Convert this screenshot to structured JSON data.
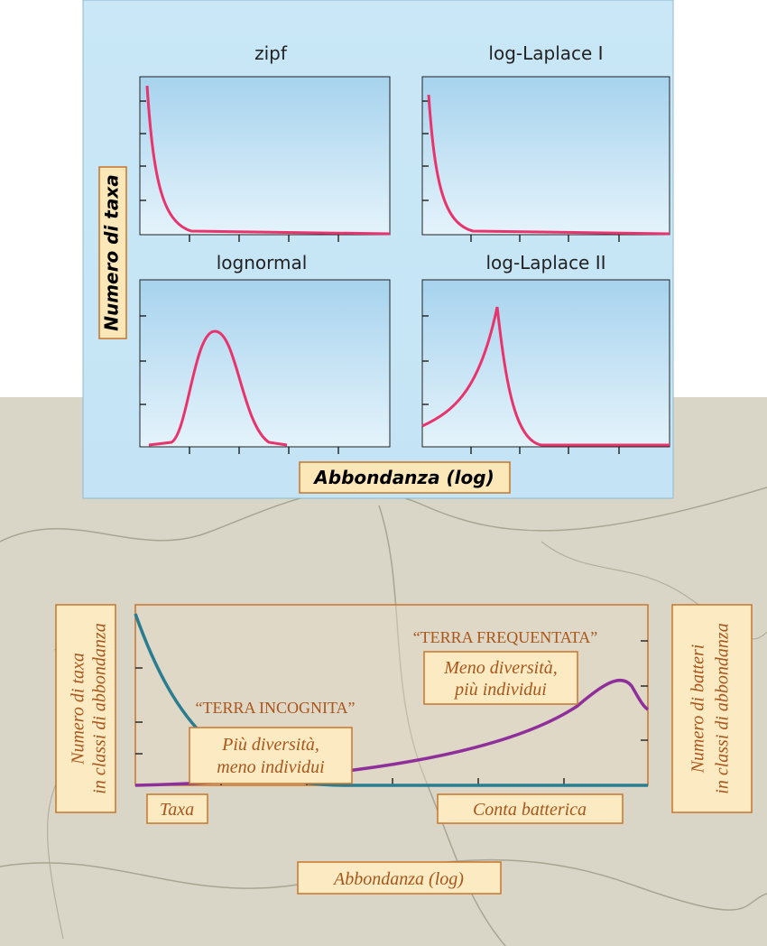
{
  "top": {
    "panels": [
      {
        "title": "zipf"
      },
      {
        "title": "log-Laplace I"
      },
      {
        "title": "lognormal"
      },
      {
        "title": "log-Laplace II"
      }
    ],
    "y_label": "Numero di taxa",
    "x_label": "Abbondanza (log)"
  },
  "bottom": {
    "left_label": [
      "Numero di taxa",
      "in classi di abbondanza"
    ],
    "right_label": [
      "Numero di batteri",
      "in classi di abbondanza"
    ],
    "region_right": "“TERRA FREQUENTATA”",
    "region_left": "“TERRA INCOGNITA”",
    "note_right": [
      "Meno diversità,",
      "più individui"
    ],
    "note_left": [
      "Più diversità,",
      "meno individui"
    ],
    "legend_left": "Taxa",
    "legend_right": "Conta batterica",
    "x_label": "Abbondanza (log)"
  }
}
